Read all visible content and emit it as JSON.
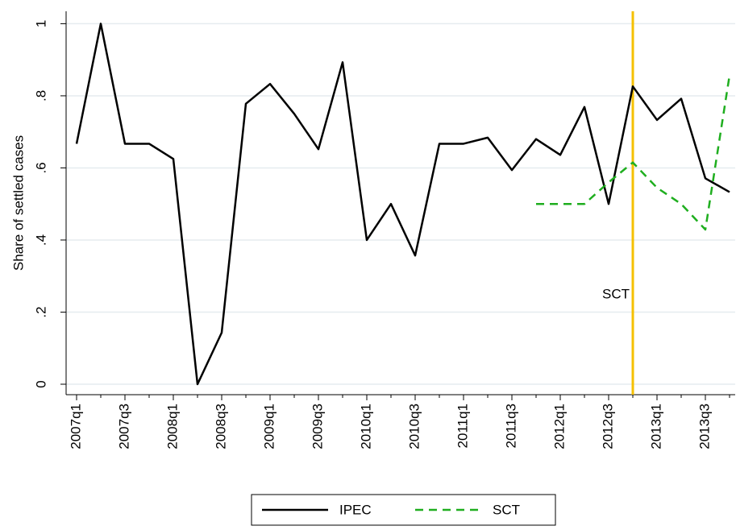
{
  "chart_data": {
    "type": "line",
    "y_label": "Share of settled cases",
    "categories": [
      "2007q1",
      null,
      "2007q3",
      null,
      "2008q1",
      null,
      "2008q3",
      null,
      "2009q1",
      null,
      "2009q3",
      null,
      "2010q1",
      null,
      "2010q3",
      null,
      "2011q1",
      null,
      "2011q3",
      null,
      "2012q1",
      null,
      "2012q3",
      null,
      "2013q1",
      null,
      "2013q3",
      null
    ],
    "series": [
      {
        "name": "IPEC",
        "color": "#000000",
        "dash": false,
        "values": [
          0.667,
          1.0,
          0.667,
          0.667,
          0.625,
          0,
          0.143,
          0.778,
          0.833,
          0.75,
          0.652,
          0.893,
          0.4,
          0.5,
          0.357,
          0.667,
          0.667,
          0.684,
          0.594,
          0.68,
          0.636,
          0.769,
          0.5,
          0.826,
          0.733,
          0.792,
          0.571,
          0.533
        ]
      },
      {
        "name": "SCT",
        "color": "#1fae1f",
        "dash": true,
        "values": [
          null,
          null,
          null,
          null,
          null,
          null,
          null,
          null,
          null,
          null,
          null,
          null,
          null,
          null,
          null,
          null,
          null,
          null,
          null,
          0.5,
          0.5,
          0.5,
          0.56,
          0.615,
          0.545,
          0.5,
          0.429,
          0.857
        ]
      }
    ],
    "ylim": [
      0,
      1.03
    ],
    "yticks": [
      0,
      {
        "value": 0.2,
        "label": ".2"
      },
      {
        "value": 0.4,
        "label": ".4"
      },
      {
        "value": 0.6,
        "label": ".6"
      },
      {
        "value": 0.8,
        "label": ".8"
      },
      1
    ],
    "grid": true,
    "vline": {
      "category_index": 23,
      "label": "SCT",
      "color": "#f5c000"
    },
    "legend": "bottom"
  }
}
